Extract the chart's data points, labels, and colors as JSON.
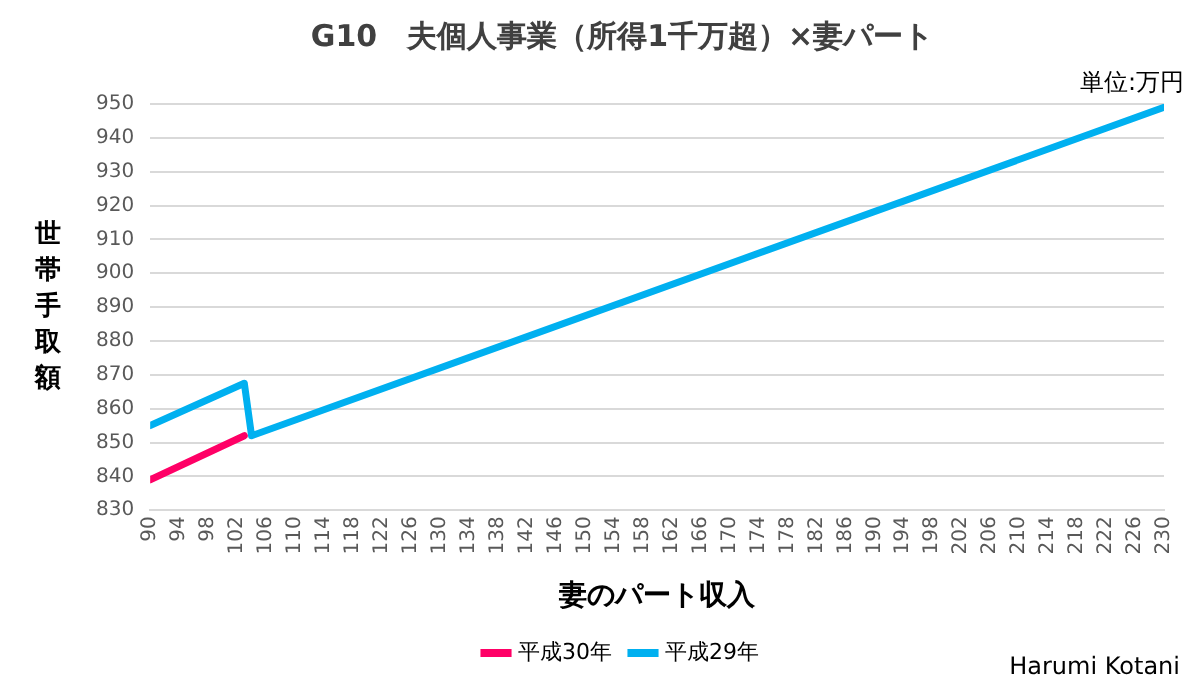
{
  "chart_data": {
    "type": "line",
    "title": "G10　夫個人事業（所得1千万超）×妻パート",
    "xlabel": "妻のパート収入",
    "ylabel": "世帯手取額",
    "annotations": [
      "単位:万円",
      "Harumi Kotani"
    ],
    "xlim": [
      90,
      230
    ],
    "xticks": [
      90,
      94,
      98,
      102,
      106,
      110,
      114,
      118,
      122,
      126,
      130,
      134,
      138,
      142,
      146,
      150,
      154,
      158,
      162,
      166,
      170,
      174,
      178,
      182,
      186,
      190,
      194,
      198,
      202,
      206,
      210,
      214,
      218,
      222,
      226,
      230
    ],
    "ylim": [
      830,
      950
    ],
    "yticks": [
      830,
      840,
      850,
      860,
      870,
      880,
      890,
      900,
      910,
      920,
      930,
      940,
      950
    ],
    "series": [
      {
        "name": "平成30年",
        "color": "#ff0066",
        "x": [
          90,
          103
        ],
        "values": [
          839,
          852
        ]
      },
      {
        "name": "平成29年",
        "color": "#00b0f0",
        "x": [
          90,
          103,
          104,
          230
        ],
        "values": [
          855,
          867.5,
          852,
          949
        ]
      }
    ],
    "grid": "y",
    "legend": "bottom",
    "marker": "none",
    "line_style": "solid"
  }
}
